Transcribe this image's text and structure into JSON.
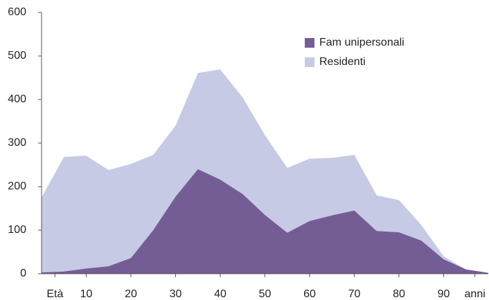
{
  "chart_data": {
    "type": "area",
    "x": [
      0,
      5,
      10,
      15,
      20,
      25,
      30,
      35,
      40,
      45,
      50,
      55,
      60,
      65,
      70,
      75,
      80,
      85,
      90,
      95,
      100
    ],
    "series": [
      {
        "name": "Residenti",
        "color": "#c6cae4",
        "values": [
          175,
          268,
          271,
          238,
          252,
          273,
          340,
          461,
          469,
          405,
          318,
          243,
          264,
          266,
          273,
          180,
          169,
          112,
          40,
          10,
          2
        ]
      },
      {
        "name": "Fam unipersonali",
        "color": "#745d95",
        "values": [
          3,
          5,
          12,
          17,
          36,
          100,
          177,
          240,
          216,
          183,
          135,
          94,
          121,
          134,
          145,
          98,
          95,
          76,
          33,
          10,
          2
        ]
      }
    ],
    "xlim": [
      0,
      100
    ],
    "xticks": [
      {
        "value": 3,
        "label": "Età"
      },
      10,
      20,
      30,
      40,
      50,
      60,
      70,
      80,
      90,
      {
        "value": 97,
        "label": "anni"
      }
    ],
    "ylim": [
      0,
      600
    ],
    "yticks": [
      0,
      100,
      200,
      300,
      400,
      500,
      600
    ],
    "legend": "top-right"
  }
}
